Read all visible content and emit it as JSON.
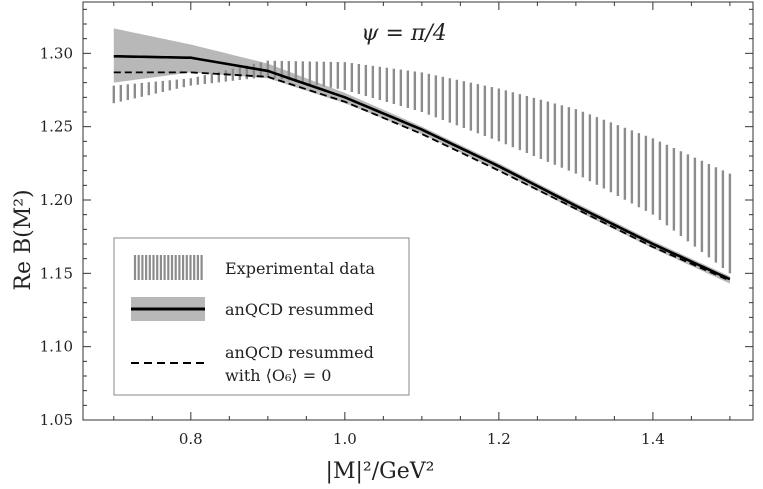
{
  "chart_data": {
    "type": "line",
    "title": "ψ = π/4",
    "xlabel": "|M|²/GeV²",
    "ylabel": "Re B(M²)",
    "xlim": [
      0.66,
      1.53
    ],
    "ylim": [
      1.05,
      1.335
    ],
    "xticks": [
      "0.8",
      "1.0",
      "1.2",
      "1.4"
    ],
    "xtick_values": [
      0.8,
      1.0,
      1.2,
      1.4
    ],
    "yticks": [
      "1.05",
      "1.10",
      "1.15",
      "1.20",
      "1.25",
      "1.30"
    ],
    "ytick_values": [
      1.05,
      1.1,
      1.15,
      1.2,
      1.25,
      1.3
    ],
    "x": [
      0.7,
      0.8,
      0.9,
      1.0,
      1.1,
      1.2,
      1.3,
      1.4,
      1.5
    ],
    "series": [
      {
        "name": "Experimental data",
        "style": "hatched-band",
        "upper": [
          1.278,
          1.283,
          1.295,
          1.294,
          1.287,
          1.276,
          1.262,
          1.242,
          1.218
        ],
        "lower": [
          1.266,
          1.278,
          1.284,
          1.275,
          1.26,
          1.24,
          1.218,
          1.19,
          1.15
        ]
      },
      {
        "name": "anQCD resummed",
        "style": "solid-with-band",
        "values": [
          1.298,
          1.297,
          1.288,
          1.27,
          1.248,
          1.223,
          1.196,
          1.17,
          1.146
        ],
        "band_upper": [
          1.317,
          1.306,
          1.293,
          1.273,
          1.25,
          1.225,
          1.198,
          1.172,
          1.148
        ],
        "band_lower": [
          1.28,
          1.287,
          1.283,
          1.266,
          1.245,
          1.22,
          1.193,
          1.167,
          1.143
        ]
      },
      {
        "name": "anQCD resummed with ⟨O₆⟩ = 0",
        "style": "dashed",
        "values": [
          1.287,
          1.287,
          1.284,
          1.267,
          1.245,
          1.22,
          1.194,
          1.168,
          1.145
        ]
      }
    ],
    "legend": {
      "position": "bottom-left",
      "entries": [
        "Experimental data",
        "anQCD resummed",
        "anQCD resummed",
        "with ⟨O₆⟩ = 0"
      ]
    }
  },
  "colors": {
    "band_gray": "#b8b8b8",
    "hatch_gray": "#8c8c8c",
    "line_black": "#000000"
  }
}
